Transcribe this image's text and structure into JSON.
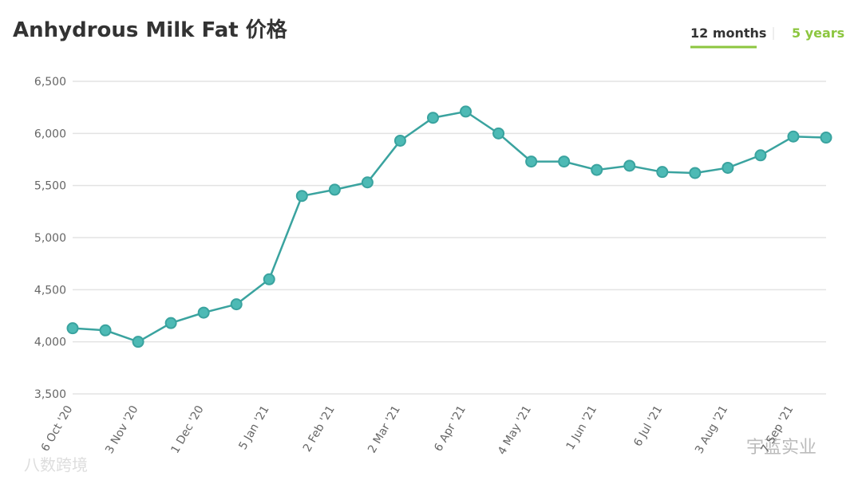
{
  "chart_data": {
    "type": "line",
    "title": "Anhydrous Milk Fat 价格",
    "tabs": [
      "12 months",
      "5 years"
    ],
    "categories": [
      "6 Oct '20",
      null,
      "3 Nov '20",
      null,
      "1 Dec '20",
      null,
      "5 Jan '21",
      null,
      "2 Feb '21",
      null,
      "2 Mar '21",
      null,
      "6 Apr '21",
      null,
      "4 May '21",
      null,
      "1 Jun '21",
      null,
      "6 Jul '21",
      null,
      "3 Aug '21",
      null,
      "7 Sep '21",
      null
    ],
    "values": [
      4130,
      4110,
      4000,
      4180,
      4280,
      4360,
      4600,
      5400,
      5460,
      5530,
      5930,
      6150,
      6210,
      6000,
      5730,
      5730,
      5650,
      5690,
      5630,
      5620,
      5670,
      5790,
      5970,
      5960
    ],
    "color": "#3aa39f",
    "ylim": [
      3500,
      6500
    ],
    "yticks": [
      {
        "value": 3500,
        "label": "3,500"
      },
      {
        "value": 4000,
        "label": "4,000"
      },
      {
        "value": 4500,
        "label": "4,500"
      },
      {
        "value": 5000,
        "label": "5,000"
      },
      {
        "value": 5500,
        "label": "5,500"
      },
      {
        "value": 6000,
        "label": "6,000"
      },
      {
        "value": 6500,
        "label": "6,500"
      }
    ],
    "grid": true,
    "watermarks": [
      "八数跨境",
      "宇蓝实业"
    ]
  }
}
